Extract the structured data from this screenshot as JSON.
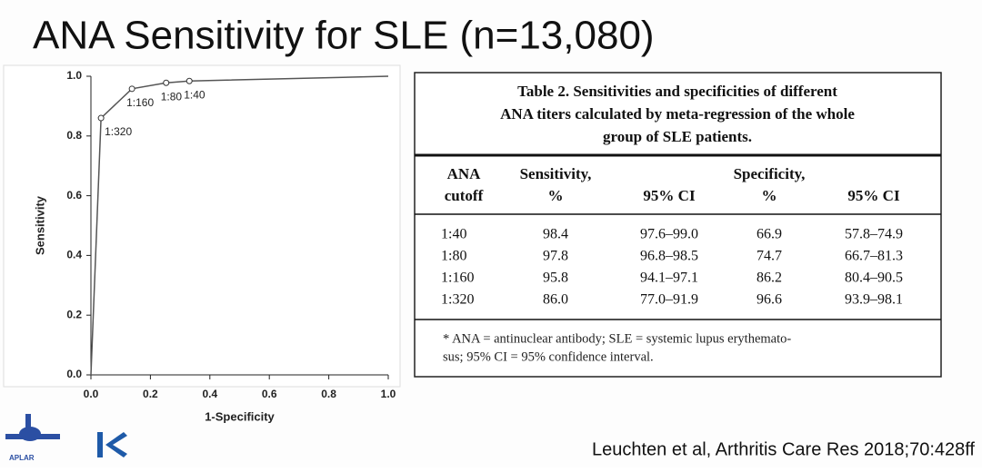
{
  "title": "ANA Sensitivity for SLE (n=13,080)",
  "chart_data": {
    "type": "line",
    "xlabel": "1-Specificity",
    "ylabel": "Sensitivity",
    "xlim": [
      0,
      1
    ],
    "ylim": [
      0,
      1
    ],
    "xticks": [
      {
        "value": 0,
        "label": "0.0"
      },
      {
        "value": 0.2,
        "label": "0.2"
      },
      {
        "value": 0.4,
        "label": "0.4"
      },
      {
        "value": 0.6,
        "label": "0.6"
      },
      {
        "value": 0.8,
        "label": "0.8"
      },
      {
        "value": 1,
        "label": "1.0"
      }
    ],
    "yticks": [
      {
        "value": 0,
        "label": "0.0"
      },
      {
        "value": 0.2,
        "label": "0.2"
      },
      {
        "value": 0.4,
        "label": "0.4"
      },
      {
        "value": 0.6,
        "label": "0.6"
      },
      {
        "value": 0.8,
        "label": "0.8"
      },
      {
        "value": 1,
        "label": "1.0"
      }
    ],
    "grid": false,
    "series": [
      {
        "color": "#555555",
        "x": [
          0,
          0.034,
          0.138,
          0.253,
          0.331,
          1
        ],
        "values": [
          0,
          0.86,
          0.958,
          0.978,
          0.984,
          1
        ],
        "point_labels": [
          null,
          "1:320",
          "1:160",
          "1:80",
          "1:40",
          null
        ]
      }
    ]
  },
  "table": {
    "title": [
      "Table 2. Sensitivities and specificities of different",
      "ANA titers calculated by meta-regression of the whole",
      "group of SLE patients."
    ],
    "header": [
      [
        "ANA",
        "cutoff"
      ],
      [
        "Sensitivity,",
        "%"
      ],
      [
        "",
        "95% CI"
      ],
      [
        "Specificity,",
        "%"
      ],
      [
        "",
        "95% CI"
      ]
    ],
    "rows": [
      [
        "1:40",
        "98.4",
        "97.6–99.0",
        "66.9",
        "57.8–74.9"
      ],
      [
        "1:80",
        "97.8",
        "96.8–98.5",
        "74.7",
        "66.7–81.3"
      ],
      [
        "1:160",
        "95.8",
        "94.1–97.1",
        "86.2",
        "80.4–90.5"
      ],
      [
        "1:320",
        "86.0",
        "77.0–91.9",
        "96.6",
        "93.9–98.1"
      ]
    ],
    "footnote": [
      "* ANA = antinuclear antibody; SLE = systemic lupus erythemato-",
      "sus; 95% CI = 95% confidence interval."
    ]
  },
  "logo_text": "APLAR",
  "citation": "Leuchten et al, Arthritis Care Res 2018;70:428ff"
}
